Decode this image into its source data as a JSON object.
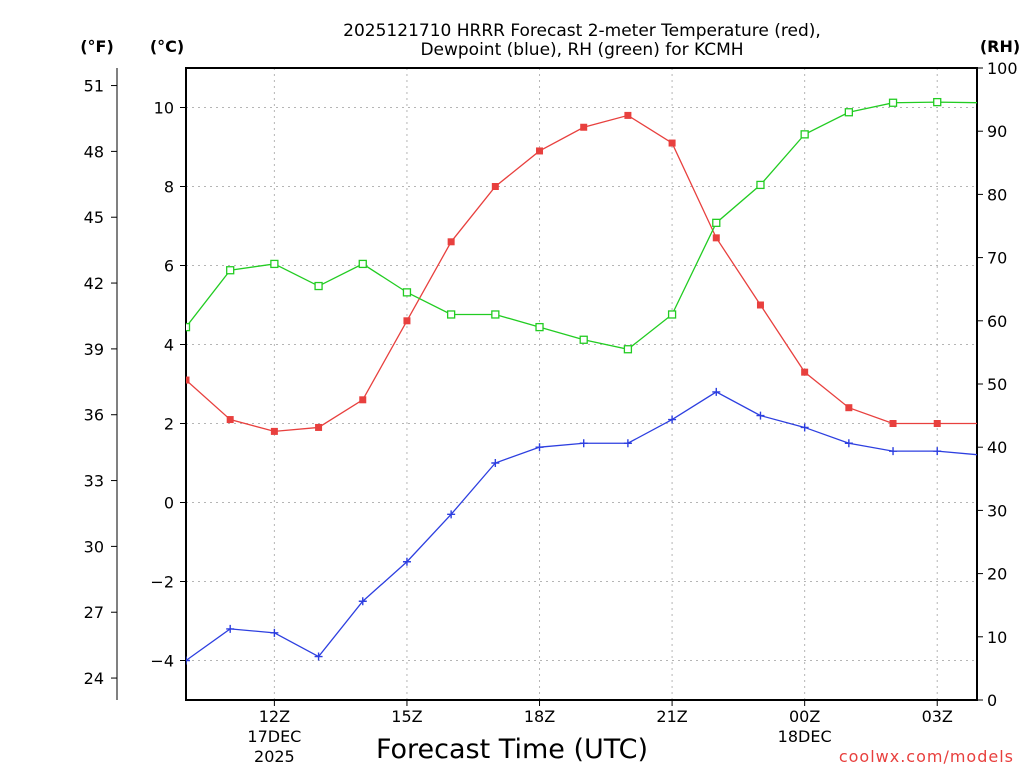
{
  "chart_data": {
    "type": "line",
    "title": "2025121710 HRRR Forecast 2-meter Temperature (red),",
    "subtitle": "Dewpoint (blue), RH (green) for KCMH",
    "xlabel": "Forecast Time (UTC)",
    "credit": "coolwx.com/models",
    "units": {
      "fahrenheit": "(°F)",
      "celsius": "(°C)",
      "rh": "(RH)"
    },
    "x_hours": [
      10,
      11,
      12,
      13,
      14,
      15,
      16,
      17,
      18,
      19,
      20,
      21,
      22,
      23,
      24,
      25,
      26,
      27,
      28
    ],
    "xlim": [
      10,
      27.9
    ],
    "x_ticks": [
      {
        "hour": 12,
        "label": "12Z",
        "line2": "17DEC",
        "line3": "2025"
      },
      {
        "hour": 15,
        "label": "15Z",
        "line2": "",
        "line3": ""
      },
      {
        "hour": 18,
        "label": "18Z",
        "line2": "",
        "line3": ""
      },
      {
        "hour": 21,
        "label": "21Z",
        "line2": "",
        "line3": ""
      },
      {
        "hour": 24,
        "label": "00Z",
        "line2": "18DEC",
        "line3": ""
      },
      {
        "hour": 27,
        "label": "03Z",
        "line2": "",
        "line3": ""
      }
    ],
    "celsius_axis": {
      "range": [
        -5,
        11
      ],
      "ticks": [
        "−4",
        "−2",
        "0",
        "2",
        "4",
        "6",
        "8",
        "10"
      ],
      "tick_values": [
        -4,
        -2,
        0,
        2,
        4,
        6,
        8,
        10
      ]
    },
    "fahrenheit_axis": {
      "ticks": [
        "24",
        "27",
        "30",
        "33",
        "36",
        "39",
        "42",
        "45",
        "48",
        "51"
      ],
      "tick_values": [
        24,
        27,
        30,
        33,
        36,
        39,
        42,
        45,
        48,
        51
      ]
    },
    "rh_axis": {
      "range": [
        0,
        100
      ],
      "ticks": [
        "0",
        "10",
        "20",
        "30",
        "40",
        "50",
        "60",
        "70",
        "80",
        "90",
        "100"
      ],
      "tick_values": [
        0,
        10,
        20,
        30,
        40,
        50,
        60,
        70,
        80,
        90,
        100
      ]
    },
    "grid": true,
    "series": [
      {
        "name": "Temperature",
        "axis": "celsius",
        "color": "#e8403e",
        "marker": "filled-square",
        "values": [
          3.1,
          2.1,
          1.8,
          1.9,
          2.6,
          4.6,
          6.6,
          8.0,
          8.9,
          9.5,
          9.8,
          9.1,
          6.7,
          5.0,
          3.3,
          2.4,
          2.0,
          2.0,
          2.0
        ]
      },
      {
        "name": "Dewpoint",
        "axis": "celsius",
        "color": "#2d3fe0",
        "marker": "plus",
        "values": [
          -4.0,
          -3.2,
          -3.3,
          -3.9,
          -2.5,
          -1.5,
          -0.3,
          1.0,
          1.4,
          1.5,
          1.5,
          2.1,
          2.8,
          2.2,
          1.9,
          1.5,
          1.3,
          1.3,
          1.2
        ]
      },
      {
        "name": "RH",
        "axis": "rh",
        "color": "#22cc22",
        "marker": "open-square",
        "values": [
          59,
          68,
          69,
          65.5,
          69,
          64.5,
          61,
          61,
          59,
          57,
          55.5,
          61,
          75.5,
          81.5,
          89.5,
          93,
          94.5,
          94.6,
          94.5
        ]
      }
    ]
  }
}
